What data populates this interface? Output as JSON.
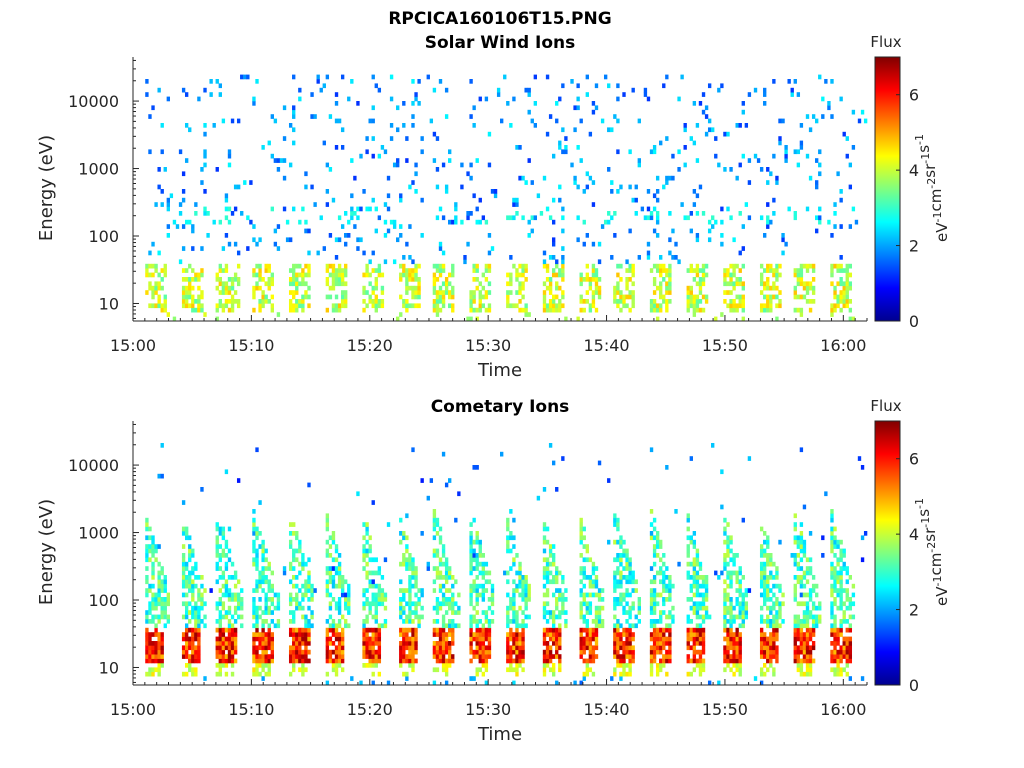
{
  "figure": {
    "title": "RPCICA160106T15.PNG"
  },
  "chart_data": [
    {
      "type": "heatmap",
      "title": "Solar Wind Ions",
      "xlabel": "Time",
      "ylabel": "Energy (eV)",
      "x_ticks": [
        "15:00",
        "15:10",
        "15:20",
        "15:30",
        "15:40",
        "15:50",
        "16:00"
      ],
      "x_range_minutes": [
        0,
        62
      ],
      "y_ticks": [
        "10",
        "100",
        "1000",
        "10000"
      ],
      "y_scale": "log",
      "y_range": [
        5.5,
        45000
      ],
      "colormap": "jet",
      "colorbar": {
        "label": "Flux",
        "units": "eV⁻¹cm⁻²sr⁻¹s⁻¹",
        "range": [
          0,
          7
        ],
        "ticks": [
          "0",
          "2",
          "4",
          "6"
        ]
      }
    },
    {
      "type": "heatmap",
      "title": "Cometary Ions",
      "xlabel": "Time",
      "ylabel": "Energy (eV)",
      "x_ticks": [
        "15:00",
        "15:10",
        "15:20",
        "15:30",
        "15:40",
        "15:50",
        "16:00"
      ],
      "x_range_minutes": [
        0,
        62
      ],
      "y_ticks": [
        "10",
        "100",
        "1000",
        "10000"
      ],
      "y_scale": "log",
      "y_range": [
        5.5,
        45000
      ],
      "colormap": "jet",
      "colorbar": {
        "label": "Flux",
        "units": "eV⁻¹cm⁻²sr⁻¹s⁻¹",
        "range": [
          0,
          7
        ],
        "ticks": [
          "0",
          "2",
          "4",
          "6"
        ]
      }
    }
  ]
}
